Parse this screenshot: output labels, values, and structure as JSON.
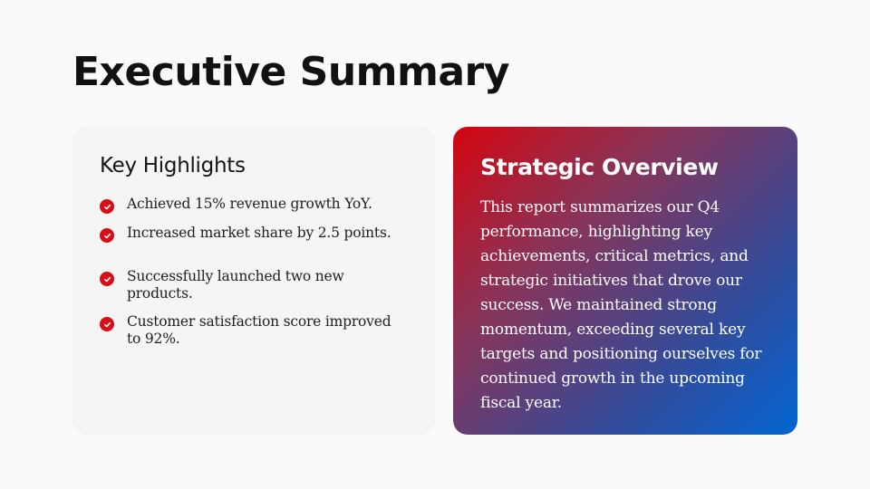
{
  "slide": {
    "title": "Executive Summary"
  },
  "highlights": {
    "heading": "Key Highlights",
    "items": [
      {
        "text": "Achieved 15% revenue growth YoY.",
        "icon": "check-circle-icon"
      },
      {
        "text": "Increased market share by 2.5 points.",
        "icon": "check-circle-icon"
      },
      {
        "text": "Successfully launched two new products.",
        "icon": "check-circle-icon"
      },
      {
        "text": "Customer satisfaction score improved to 92%.",
        "icon": "check-circle-icon"
      }
    ]
  },
  "overview": {
    "heading": "Strategic Overview",
    "body": "This report summarizes our Q4 performance, highlighting key achievements, critical metrics, and strategic initiatives that drove our success. We maintained strong momentum, exceeding several key targets and positioning ourselves for continued growth in the upcoming fiscal year."
  },
  "colors": {
    "background": "#fafafa",
    "check_accent": "#d70d17",
    "gradient_start": "#d40510",
    "gradient_end": "#0465d2"
  }
}
